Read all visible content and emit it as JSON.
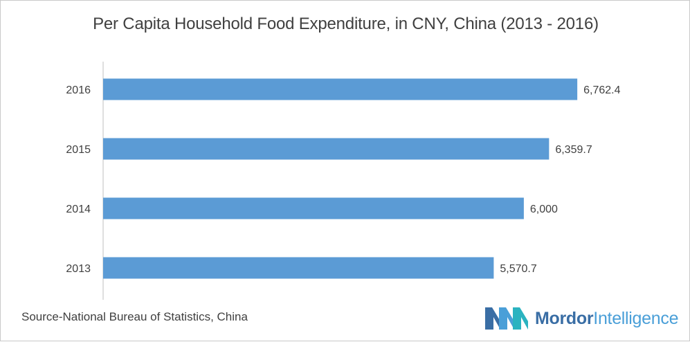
{
  "title": "Per Capita Household Food Expenditure, in CNY, China (2013 - 2016)",
  "source": "Source-National Bureau of Statistics, China",
  "logo": {
    "word1": "Mordor",
    "word2": "Intelligence"
  },
  "colors": {
    "bar": "#5b9bd5",
    "axis": "#bfbfbf",
    "text": "#404040",
    "logo_dark": "#3a6ea5",
    "logo_light": "#4a9fd8"
  },
  "chart_data": {
    "type": "bar",
    "orientation": "horizontal",
    "title": "Per Capita Household Food Expenditure, in CNY, China (2013 - 2016)",
    "categories": [
      "2016",
      "2015",
      "2014",
      "2013"
    ],
    "values": [
      6762.4,
      6359.7,
      6000,
      5570.7
    ],
    "value_labels": [
      "6,762.4",
      "6,359.7",
      "6,000",
      "5,570.7"
    ],
    "xlabel": "",
    "ylabel": "",
    "xlim": [
      0,
      7600
    ],
    "grid": false,
    "legend": "none"
  }
}
